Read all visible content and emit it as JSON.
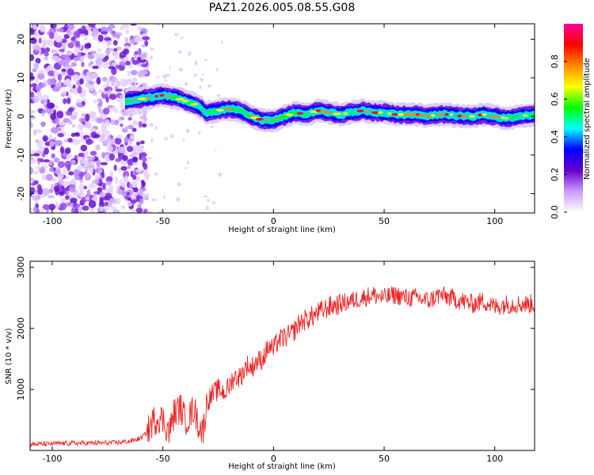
{
  "figure_title": "PAZ1.2026.005.08.55.G08",
  "chart_data": [
    {
      "type": "heatmap",
      "title": "PAZ1.2026.005.08.55.G08",
      "xlabel": "Height of straight line (km)",
      "ylabel": "Frequency (Hz)",
      "xlim": [
        -110,
        118
      ],
      "ylim": [
        -25,
        24
      ],
      "xticks": [
        -100,
        -50,
        0,
        50,
        100
      ],
      "yticks": [
        20,
        10,
        0,
        -10,
        -20
      ],
      "xtick_labels": [
        "-100",
        "-50",
        "0",
        "50",
        "100"
      ],
      "ytick_labels": [
        "20",
        "10",
        "0",
        "-10",
        "-20"
      ],
      "noise_region": {
        "x_range": [
          -110,
          -57
        ],
        "freq_range": [
          -25,
          24
        ]
      },
      "signal_ridge": {
        "x": [
          -67,
          -60,
          -55,
          -50,
          -45,
          -40,
          -35,
          -30,
          -25,
          -20,
          -15,
          -10,
          -5,
          0,
          5,
          10,
          15,
          20,
          25,
          30,
          35,
          40,
          45,
          50,
          55,
          60,
          65,
          70,
          75,
          80,
          85,
          90,
          95,
          100,
          105,
          110,
          118
        ],
        "freq": [
          4,
          4.5,
          5,
          5.5,
          5,
          4,
          3,
          1,
          1.5,
          2,
          1.5,
          0,
          -1,
          -1,
          0,
          1,
          0.5,
          1.5,
          1,
          0.5,
          1,
          1.5,
          1,
          1,
          0.5,
          0.5,
          0.5,
          0,
          0.5,
          0.5,
          0,
          0,
          0.5,
          0,
          -0.5,
          0,
          0.5
        ]
      },
      "colorbar": {
        "label": "Normalized spectral amplitude",
        "range": [
          0,
          1
        ],
        "ticks": [
          0.0,
          0.2,
          0.4,
          0.6,
          0.8
        ],
        "tick_labels": [
          "0.0",
          "0.2",
          "0.4",
          "0.6",
          "0.8"
        ],
        "colors": [
          "#ffffff",
          "#cc99ff",
          "#6600cc",
          "#0000ff",
          "#00ffff",
          "#00ff00",
          "#ffff00",
          "#ff8800",
          "#ff0000",
          "#ff0099"
        ]
      }
    },
    {
      "type": "line",
      "xlabel": "Height of straight line (km)",
      "ylabel": "SNR (10 * v/v)",
      "xlim": [
        -110,
        118
      ],
      "ylim": [
        0,
        3100
      ],
      "xticks": [
        -100,
        -50,
        0,
        50,
        100
      ],
      "yticks": [
        3000,
        2000,
        1000
      ],
      "xtick_labels": [
        "-100",
        "-50",
        "0",
        "50",
        "100"
      ],
      "ytick_labels": [
        "3000",
        "2000",
        "1000"
      ],
      "series": [
        {
          "name": "SNR",
          "color": "#ee2222",
          "x": [
            -110,
            -100,
            -90,
            -80,
            -70,
            -65,
            -60,
            -57,
            -55,
            -52,
            -50,
            -47,
            -45,
            -42,
            -40,
            -38,
            -36,
            -34,
            -32,
            -30,
            -28,
            -25,
            -22,
            -20,
            -18,
            -15,
            -12,
            -10,
            -8,
            -5,
            -2,
            0,
            2,
            5,
            8,
            10,
            12,
            15,
            18,
            20,
            25,
            30,
            35,
            40,
            45,
            50,
            55,
            60,
            65,
            70,
            75,
            80,
            85,
            90,
            95,
            100,
            105,
            110,
            118
          ],
          "y": [
            100,
            110,
            120,
            120,
            130,
            150,
            200,
            300,
            450,
            550,
            500,
            300,
            600,
            700,
            500,
            550,
            700,
            450,
            300,
            800,
            900,
            1000,
            950,
            1050,
            1200,
            1200,
            1400,
            1350,
            1450,
            1500,
            1700,
            1650,
            1800,
            1850,
            1900,
            2000,
            2100,
            2150,
            2200,
            2250,
            2350,
            2400,
            2450,
            2500,
            2550,
            2500,
            2550,
            2500,
            2500,
            2450,
            2550,
            2500,
            2450,
            2400,
            2450,
            2350,
            2400,
            2400,
            2400
          ]
        }
      ]
    }
  ]
}
